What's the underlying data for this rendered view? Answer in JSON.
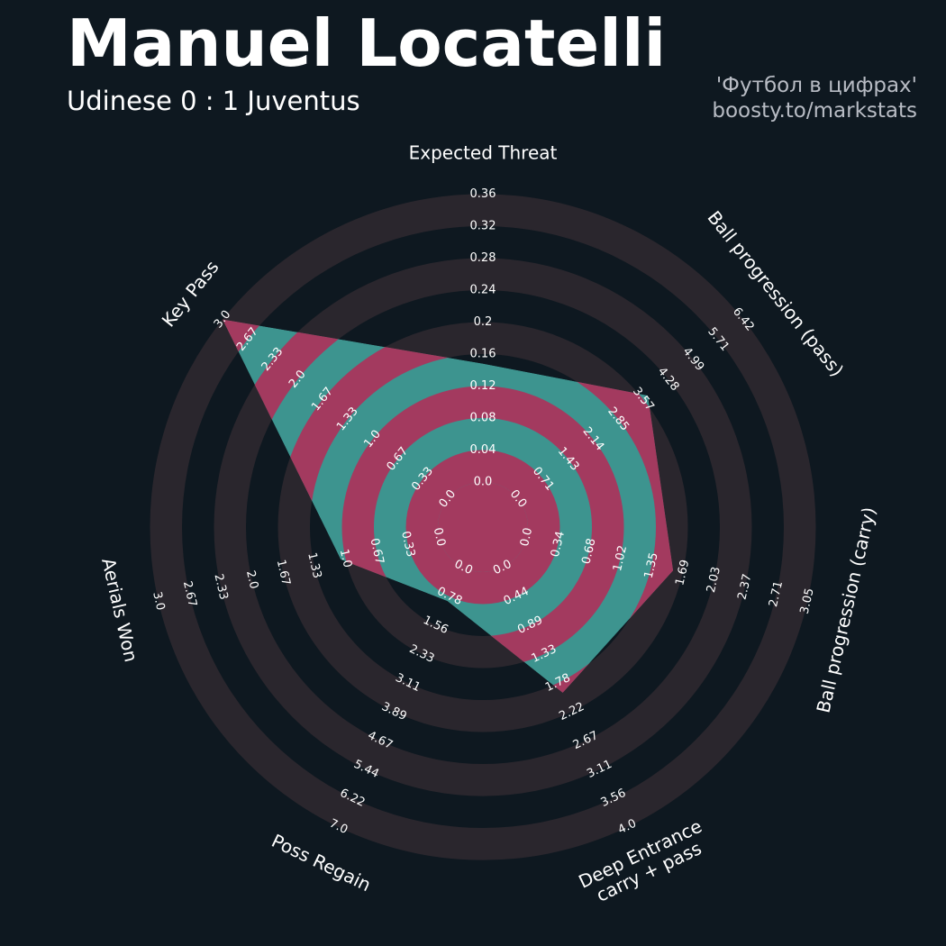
{
  "header": {
    "title": "Manuel Locatelli",
    "subtitle": "Udinese 0 : 1 Juventus",
    "credit_line1": "'Футбол в цифрах'",
    "credit_line2": "boosty.to/markstats"
  },
  "colors": {
    "background": "#0e1820",
    "band": "#2a262d",
    "fill_teal": "#3d948f",
    "fill_ring": "#a33a5f",
    "center": "#a33a5f",
    "text": "#ffffff"
  },
  "chart_data": {
    "type": "radar",
    "title": "Manuel Locatelli",
    "subtitle": "Udinese 0 : 1 Juventus",
    "axes": [
      {
        "name": "Expected Threat",
        "ticks": [
          "0.0",
          "0.04",
          "0.08",
          "0.12",
          "0.16",
          "0.2",
          "0.24",
          "0.28",
          "0.32",
          "0.36"
        ],
        "max": 0.36,
        "value": 0.148
      },
      {
        "name": "Ball progression (pass)",
        "ticks": [
          "0.0",
          "0.71",
          "1.43",
          "2.14",
          "2.85",
          "3.57",
          "4.28",
          "4.99",
          "5.71",
          "6.42"
        ],
        "max": 6.42,
        "value": 3.7
      },
      {
        "name": "Ball progression (carry)",
        "ticks": [
          "0.0",
          "0.34",
          "0.68",
          "1.02",
          "1.35",
          "1.69",
          "2.03",
          "2.37",
          "2.71",
          "3.05"
        ],
        "max": 3.05,
        "value": 1.59
      },
      {
        "name": "Deep Entrance\ncarry + pass",
        "ticks": [
          "0.0",
          "0.44",
          "0.89",
          "1.33",
          "1.78",
          "2.22",
          "2.67",
          "3.11",
          "3.56",
          "4.0"
        ],
        "max": 4.0,
        "value": 1.93
      },
      {
        "name": "Poss Regain",
        "ticks": [
          "0.0",
          "0.78",
          "1.56",
          "2.33",
          "3.11",
          "3.89",
          "4.67",
          "5.44",
          "6.22",
          "7.0"
        ],
        "max": 7.0,
        "value": 0.9
      },
      {
        "name": "Aerials Won",
        "ticks": [
          "0.0",
          "0.33",
          "0.67",
          "1.0",
          "1.33",
          "1.67",
          "2.0",
          "2.33",
          "2.67",
          "3.0"
        ],
        "max": 3.0,
        "value": 1.05
      },
      {
        "name": "Key Pass",
        "ticks": [
          "0.0",
          "0.33",
          "0.67",
          "1.0",
          "1.33",
          "1.67",
          "2.0",
          "2.33",
          "2.67",
          "3.0"
        ],
        "max": 3.0,
        "value": 3.0
      }
    ]
  }
}
